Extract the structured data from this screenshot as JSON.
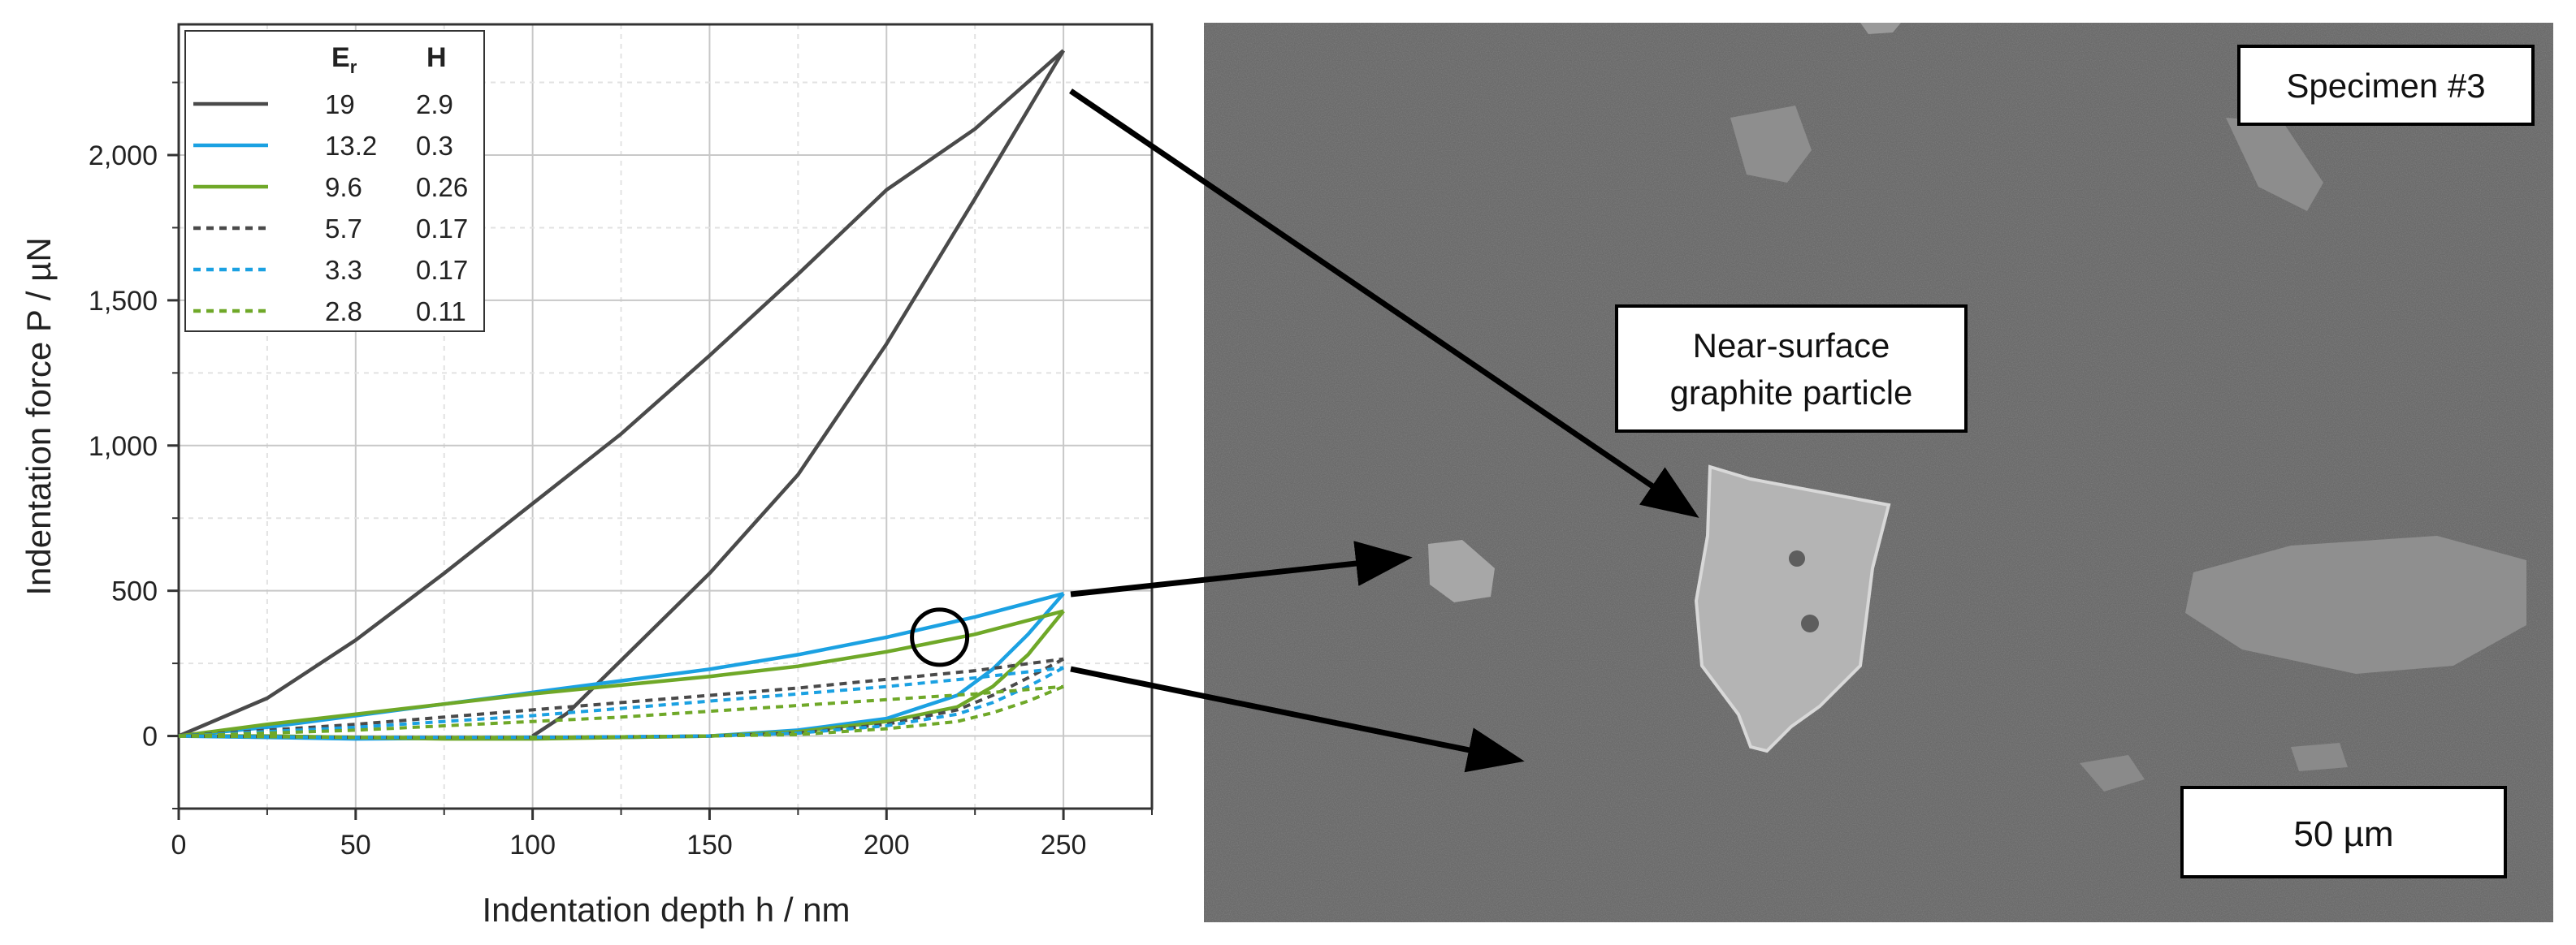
{
  "chart_data": {
    "type": "line",
    "xlabel": "Indentation depth h / nm",
    "ylabel": "Indentation force P / µN",
    "xlim": [
      0,
      275
    ],
    "ylim": [
      -250,
      2450
    ],
    "xticks": [
      0,
      50,
      100,
      150,
      200,
      250
    ],
    "xtick_labels": [
      "0",
      "50",
      "100",
      "150",
      "200",
      "250"
    ],
    "yticks": [
      0,
      500,
      1000,
      1500,
      2000
    ],
    "ytick_labels": [
      "0",
      "500",
      "1,000",
      "1,500",
      "2,000"
    ],
    "grid": true,
    "legend": {
      "position": "top-left",
      "col_er_main": "E",
      "col_er_sub": "r",
      "col_h": "H"
    },
    "series": [
      {
        "er": "19",
        "h": "2.9",
        "color": "#4a4a4a",
        "dash": "solid",
        "loading": [
          [
            0,
            0
          ],
          [
            25,
            130
          ],
          [
            50,
            330
          ],
          [
            75,
            560
          ],
          [
            100,
            800
          ],
          [
            125,
            1040
          ],
          [
            150,
            1310
          ],
          [
            175,
            1590
          ],
          [
            200,
            1880
          ],
          [
            225,
            2090
          ],
          [
            250,
            2360
          ]
        ],
        "unloading": [
          [
            250,
            2360
          ],
          [
            225,
            1850
          ],
          [
            200,
            1350
          ],
          [
            175,
            900
          ],
          [
            150,
            560
          ],
          [
            125,
            260
          ],
          [
            110,
            80
          ],
          [
            100,
            0
          ]
        ]
      },
      {
        "er": "13.2",
        "h": "0.3",
        "color": "#1ba1e2",
        "dash": "solid",
        "loading": [
          [
            0,
            0
          ],
          [
            25,
            30
          ],
          [
            50,
            70
          ],
          [
            75,
            110
          ],
          [
            100,
            150
          ],
          [
            125,
            190
          ],
          [
            150,
            230
          ],
          [
            175,
            280
          ],
          [
            200,
            340
          ],
          [
            225,
            410
          ],
          [
            250,
            490
          ]
        ],
        "unloading": [
          [
            250,
            490
          ],
          [
            240,
            350
          ],
          [
            230,
            230
          ],
          [
            220,
            140
          ],
          [
            200,
            60
          ],
          [
            175,
            20
          ],
          [
            150,
            0
          ],
          [
            125,
            -5
          ],
          [
            100,
            -5
          ],
          [
            75,
            -8
          ],
          [
            50,
            -10
          ],
          [
            25,
            -5
          ],
          [
            0,
            0
          ]
        ]
      },
      {
        "er": "9.6",
        "h": "0.26",
        "color": "#6fa828",
        "dash": "solid",
        "loading": [
          [
            0,
            0
          ],
          [
            25,
            40
          ],
          [
            50,
            75
          ],
          [
            75,
            110
          ],
          [
            100,
            145
          ],
          [
            125,
            175
          ],
          [
            150,
            205
          ],
          [
            175,
            240
          ],
          [
            200,
            290
          ],
          [
            225,
            350
          ],
          [
            250,
            430
          ]
        ],
        "unloading": [
          [
            250,
            430
          ],
          [
            240,
            280
          ],
          [
            230,
            170
          ],
          [
            220,
            100
          ],
          [
            200,
            50
          ],
          [
            175,
            15
          ],
          [
            150,
            0
          ],
          [
            125,
            -5
          ],
          [
            100,
            -10
          ],
          [
            75,
            -10
          ],
          [
            50,
            -5
          ],
          [
            25,
            0
          ],
          [
            0,
            0
          ]
        ]
      },
      {
        "er": "5.7",
        "h": "0.17",
        "color": "#4a4a4a",
        "dash": "dotted",
        "loading": [
          [
            0,
            0
          ],
          [
            25,
            20
          ],
          [
            50,
            40
          ],
          [
            75,
            65
          ],
          [
            100,
            90
          ],
          [
            125,
            115
          ],
          [
            150,
            140
          ],
          [
            175,
            165
          ],
          [
            200,
            195
          ],
          [
            225,
            225
          ],
          [
            250,
            265
          ]
        ],
        "unloading": [
          [
            250,
            265
          ],
          [
            240,
            200
          ],
          [
            230,
            140
          ],
          [
            220,
            90
          ],
          [
            200,
            40
          ],
          [
            175,
            10
          ],
          [
            150,
            0
          ],
          [
            100,
            -5
          ],
          [
            50,
            -5
          ],
          [
            0,
            0
          ]
        ]
      },
      {
        "er": "3.3",
        "h": "0.17",
        "color": "#1ba1e2",
        "dash": "dotted",
        "loading": [
          [
            0,
            0
          ],
          [
            25,
            15
          ],
          [
            50,
            30
          ],
          [
            75,
            50
          ],
          [
            100,
            70
          ],
          [
            125,
            95
          ],
          [
            150,
            120
          ],
          [
            175,
            145
          ],
          [
            200,
            170
          ],
          [
            225,
            200
          ],
          [
            250,
            235
          ]
        ],
        "unloading": [
          [
            250,
            235
          ],
          [
            240,
            170
          ],
          [
            230,
            115
          ],
          [
            220,
            75
          ],
          [
            200,
            35
          ],
          [
            175,
            10
          ],
          [
            150,
            0
          ],
          [
            100,
            -5
          ],
          [
            50,
            -5
          ],
          [
            0,
            0
          ]
        ]
      },
      {
        "er": "2.8",
        "h": "0.11",
        "color": "#6fa828",
        "dash": "dotted",
        "loading": [
          [
            0,
            0
          ],
          [
            25,
            10
          ],
          [
            50,
            20
          ],
          [
            75,
            35
          ],
          [
            100,
            50
          ],
          [
            125,
            65
          ],
          [
            150,
            85
          ],
          [
            175,
            105
          ],
          [
            200,
            125
          ],
          [
            225,
            145
          ],
          [
            250,
            170
          ]
        ],
        "unloading": [
          [
            250,
            170
          ],
          [
            240,
            120
          ],
          [
            230,
            80
          ],
          [
            220,
            50
          ],
          [
            200,
            25
          ],
          [
            175,
            5
          ],
          [
            150,
            0
          ],
          [
            100,
            -5
          ],
          [
            50,
            -5
          ],
          [
            0,
            0
          ]
        ]
      }
    ],
    "circle_marker": {
      "x": 215,
      "y": 340
    }
  },
  "micrograph": {
    "specimen_label": "Specimen #3",
    "particle_label_line1": "Near-surface",
    "particle_label_line2": "graphite particle",
    "scale_bar_label": "50 µm"
  }
}
